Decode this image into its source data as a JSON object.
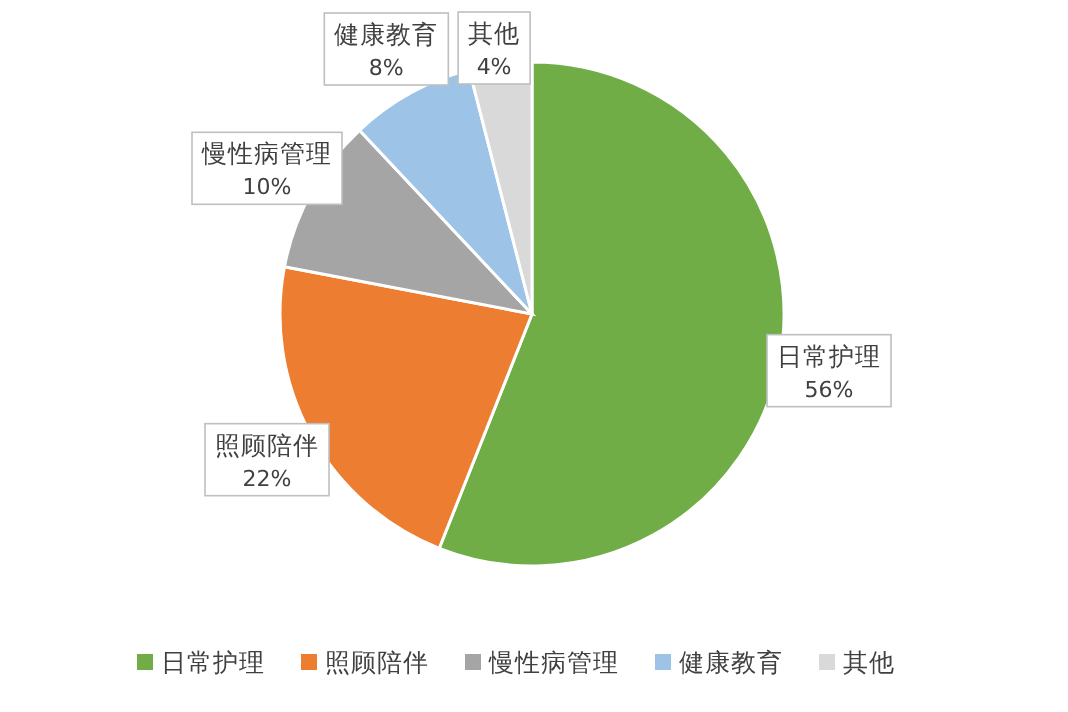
{
  "chart_data": {
    "type": "pie",
    "categories": [
      "日常护理",
      "照顾陪伴",
      "慢性病管理",
      "健康教育",
      "其他"
    ],
    "values": [
      56,
      22,
      10,
      8,
      4
    ],
    "colors": [
      "#70ad47",
      "#ed7d31",
      "#a5a5a5",
      "#9dc3e6",
      "#d9d9d9"
    ],
    "value_labels": [
      "56%",
      "22%",
      "10%",
      "8%",
      "4%"
    ],
    "legend": "bottom"
  }
}
